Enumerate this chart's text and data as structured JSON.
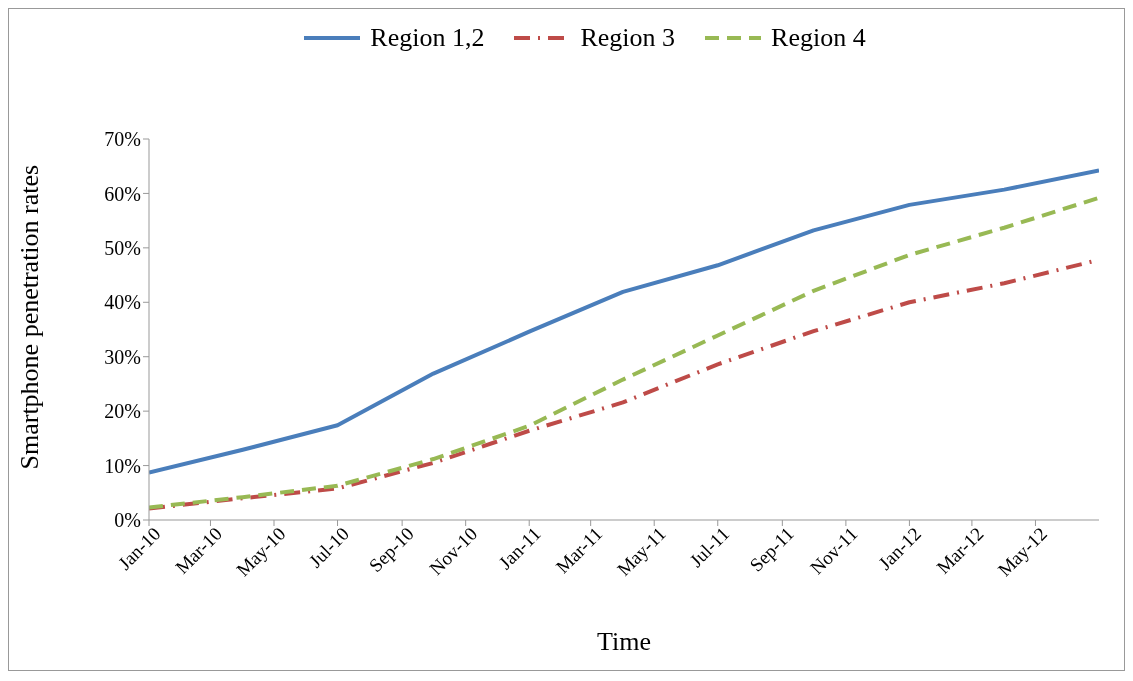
{
  "chart_data": {
    "type": "line",
    "xlabel": "Time",
    "ylabel": "Smartphone penetration rates",
    "x": [
      "2010-01",
      "2010-04",
      "2010-07",
      "2010-10",
      "2011-01",
      "2011-04",
      "2011-07",
      "2011-10",
      "2012-01",
      "2012-04",
      "2012-07"
    ],
    "series": [
      {
        "name": "Region 1,2",
        "color": "#4a7ebb",
        "line_style": "solid",
        "values": [
          8.7,
          12.9,
          17.4,
          26.9,
          34.6,
          41.9,
          46.8,
          53.2,
          57.9,
          60.7,
          64.2
        ]
      },
      {
        "name": "Region 3",
        "color": "#be4b48",
        "line_style": "dashdot",
        "values": [
          2.1,
          4.0,
          5.8,
          10.5,
          16.4,
          21.6,
          28.6,
          34.7,
          40.0,
          43.5,
          47.8
        ]
      },
      {
        "name": "Region 4",
        "color": "#98b954",
        "line_style": "dashed",
        "values": [
          2.3,
          4.2,
          6.3,
          11.2,
          17.3,
          25.8,
          33.9,
          42.1,
          48.7,
          53.7,
          59.2
        ]
      }
    ],
    "xlim": [
      "2010-01",
      "2012-07"
    ],
    "xticks": [
      {
        "value": "2010-01",
        "label": "Jan-10"
      },
      {
        "value": "2010-03",
        "label": "Mar-10"
      },
      {
        "value": "2010-05",
        "label": "May-10"
      },
      {
        "value": "2010-07",
        "label": "Jul-10"
      },
      {
        "value": "2010-09",
        "label": "Sep-10"
      },
      {
        "value": "2010-11",
        "label": "Nov-10"
      },
      {
        "value": "2011-01",
        "label": "Jan-11"
      },
      {
        "value": "2011-03",
        "label": "Mar-11"
      },
      {
        "value": "2011-05",
        "label": "May-11"
      },
      {
        "value": "2011-07",
        "label": "Jul-11"
      },
      {
        "value": "2011-09",
        "label": "Sep-11"
      },
      {
        "value": "2011-11",
        "label": "Nov-11"
      },
      {
        "value": "2012-01",
        "label": "Jan-12"
      },
      {
        "value": "2012-03",
        "label": "Mar-12"
      },
      {
        "value": "2012-05",
        "label": "May-12"
      }
    ],
    "ylim": [
      0,
      70
    ],
    "yticks": [
      {
        "value": 0,
        "label": "0%"
      },
      {
        "value": 10,
        "label": "10%"
      },
      {
        "value": 20,
        "label": "20%"
      },
      {
        "value": 30,
        "label": "30%"
      },
      {
        "value": 40,
        "label": "40%"
      },
      {
        "value": 50,
        "label": "50%"
      },
      {
        "value": 60,
        "label": "60%"
      },
      {
        "value": 70,
        "label": "70%"
      }
    ],
    "grid": false,
    "legend": "top",
    "marker": "none"
  }
}
